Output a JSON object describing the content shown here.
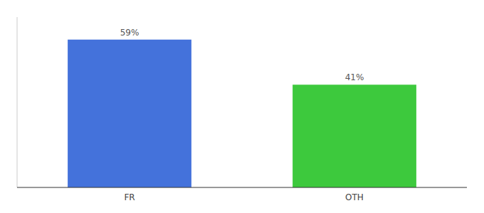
{
  "chart_data": {
    "type": "bar",
    "categories": [
      "FR",
      "OTH"
    ],
    "values": [
      59,
      41
    ],
    "value_labels": [
      "59%",
      "41%"
    ],
    "colors": [
      "#4472db",
      "#3dc93d"
    ],
    "ylim": [
      0,
      68
    ],
    "data_labels": true,
    "tick_labels": "x",
    "grid": false
  }
}
